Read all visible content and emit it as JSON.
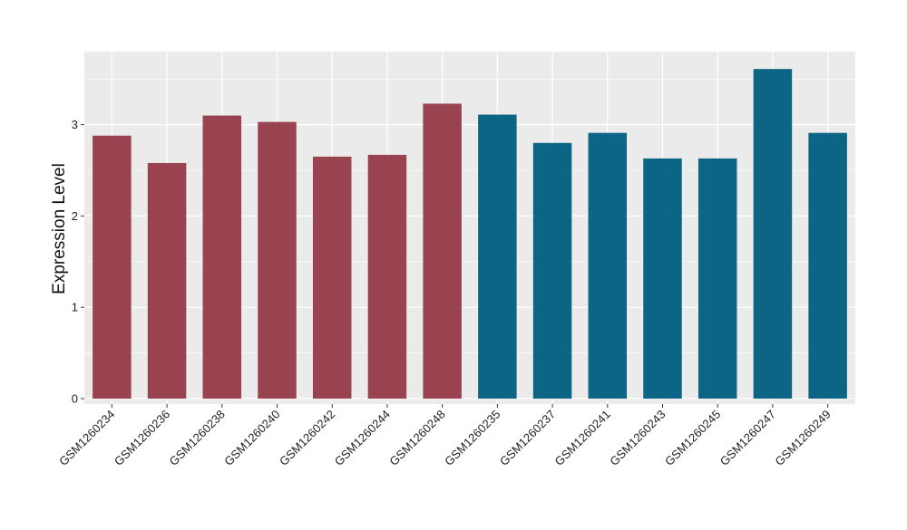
{
  "chart_data": {
    "type": "bar",
    "title": "",
    "xlabel": "",
    "ylabel": "Expression Level",
    "ylim": [
      -0.06,
      3.8
    ],
    "y_ticks": [
      0,
      1,
      2,
      3
    ],
    "grid": true,
    "legend": "none",
    "colors": {
      "group_1": "#9a4350",
      "group_2": "#0d6585",
      "panel_background": "#ebebeb",
      "grid_line": "#ffffff"
    },
    "categories": [
      "GSM1260234",
      "GSM1260236",
      "GSM1260238",
      "GSM1260240",
      "GSM1260242",
      "GSM1260244",
      "GSM1260248",
      "GSM1260235",
      "GSM1260237",
      "GSM1260241",
      "GSM1260243",
      "GSM1260245",
      "GSM1260247",
      "GSM1260249"
    ],
    "values": [
      2.88,
      2.58,
      3.1,
      3.03,
      2.65,
      2.67,
      3.23,
      3.11,
      2.8,
      2.91,
      2.63,
      2.63,
      3.61,
      2.91
    ],
    "bar_groups": [
      "group_1",
      "group_1",
      "group_1",
      "group_1",
      "group_1",
      "group_1",
      "group_1",
      "group_2",
      "group_2",
      "group_2",
      "group_2",
      "group_2",
      "group_2",
      "group_2"
    ]
  }
}
